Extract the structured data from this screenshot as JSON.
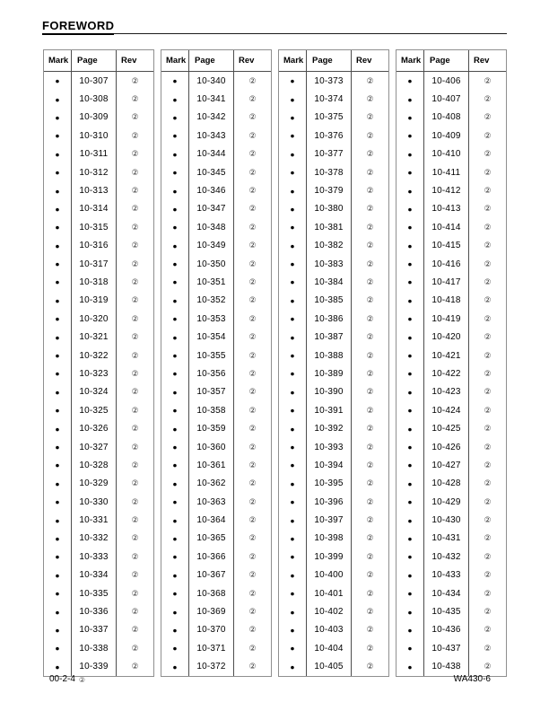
{
  "page": {
    "heading": "FOREWORD",
    "footer": {
      "left_text": "00-2-4",
      "left_rev": "②",
      "right_text": "WA430-6"
    }
  },
  "tables": [
    {
      "headers": [
        "Mark",
        "Page",
        "Rev"
      ],
      "rows": [
        [
          "●",
          "10-307",
          "②"
        ],
        [
          "●",
          "10-308",
          "②"
        ],
        [
          "●",
          "10-309",
          "②"
        ],
        [
          "●",
          "10-310",
          "②"
        ],
        [
          "●",
          "10-311",
          "②"
        ],
        [
          "●",
          "10-312",
          "②"
        ],
        [
          "●",
          "10-313",
          "②"
        ],
        [
          "●",
          "10-314",
          "②"
        ],
        [
          "●",
          "10-315",
          "②"
        ],
        [
          "●",
          "10-316",
          "②"
        ],
        [
          "●",
          "10-317",
          "②"
        ],
        [
          "●",
          "10-318",
          "②"
        ],
        [
          "●",
          "10-319",
          "②"
        ],
        [
          "●",
          "10-320",
          "②"
        ],
        [
          "●",
          "10-321",
          "②"
        ],
        [
          "●",
          "10-322",
          "②"
        ],
        [
          "●",
          "10-323",
          "②"
        ],
        [
          "●",
          "10-324",
          "②"
        ],
        [
          "●",
          "10-325",
          "②"
        ],
        [
          "●",
          "10-326",
          "②"
        ],
        [
          "●",
          "10-327",
          "②"
        ],
        [
          "●",
          "10-328",
          "②"
        ],
        [
          "●",
          "10-329",
          "②"
        ],
        [
          "●",
          "10-330",
          "②"
        ],
        [
          "●",
          "10-331",
          "②"
        ],
        [
          "●",
          "10-332",
          "②"
        ],
        [
          "●",
          "10-333",
          "②"
        ],
        [
          "●",
          "10-334",
          "②"
        ],
        [
          "●",
          "10-335",
          "②"
        ],
        [
          "●",
          "10-336",
          "②"
        ],
        [
          "●",
          "10-337",
          "②"
        ],
        [
          "●",
          "10-338",
          "②"
        ],
        [
          "●",
          "10-339",
          "②"
        ]
      ]
    },
    {
      "headers": [
        "Mark",
        "Page",
        "Rev"
      ],
      "rows": [
        [
          "●",
          "10-340",
          "②"
        ],
        [
          "●",
          "10-341",
          "②"
        ],
        [
          "●",
          "10-342",
          "②"
        ],
        [
          "●",
          "10-343",
          "②"
        ],
        [
          "●",
          "10-344",
          "②"
        ],
        [
          "●",
          "10-345",
          "②"
        ],
        [
          "●",
          "10-346",
          "②"
        ],
        [
          "●",
          "10-347",
          "②"
        ],
        [
          "●",
          "10-348",
          "②"
        ],
        [
          "●",
          "10-349",
          "②"
        ],
        [
          "●",
          "10-350",
          "②"
        ],
        [
          "●",
          "10-351",
          "②"
        ],
        [
          "●",
          "10-352",
          "②"
        ],
        [
          "●",
          "10-353",
          "②"
        ],
        [
          "●",
          "10-354",
          "②"
        ],
        [
          "●",
          "10-355",
          "②"
        ],
        [
          "●",
          "10-356",
          "②"
        ],
        [
          "●",
          "10-357",
          "②"
        ],
        [
          "●",
          "10-358",
          "②"
        ],
        [
          "●",
          "10-359",
          "②"
        ],
        [
          "●",
          "10-360",
          "②"
        ],
        [
          "●",
          "10-361",
          "②"
        ],
        [
          "●",
          "10-362",
          "②"
        ],
        [
          "●",
          "10-363",
          "②"
        ],
        [
          "●",
          "10-364",
          "②"
        ],
        [
          "●",
          "10-365",
          "②"
        ],
        [
          "●",
          "10-366",
          "②"
        ],
        [
          "●",
          "10-367",
          "②"
        ],
        [
          "●",
          "10-368",
          "②"
        ],
        [
          "●",
          "10-369",
          "②"
        ],
        [
          "●",
          "10-370",
          "②"
        ],
        [
          "●",
          "10-371",
          "②"
        ],
        [
          "●",
          "10-372",
          "②"
        ]
      ]
    },
    {
      "headers": [
        "Mark",
        "Page",
        "Rev"
      ],
      "rows": [
        [
          "●",
          "10-373",
          "②"
        ],
        [
          "●",
          "10-374",
          "②"
        ],
        [
          "●",
          "10-375",
          "②"
        ],
        [
          "●",
          "10-376",
          "②"
        ],
        [
          "●",
          "10-377",
          "②"
        ],
        [
          "●",
          "10-378",
          "②"
        ],
        [
          "●",
          "10-379",
          "②"
        ],
        [
          "●",
          "10-380",
          "②"
        ],
        [
          "●",
          "10-381",
          "②"
        ],
        [
          "●",
          "10-382",
          "②"
        ],
        [
          "●",
          "10-383",
          "②"
        ],
        [
          "●",
          "10-384",
          "②"
        ],
        [
          "●",
          "10-385",
          "②"
        ],
        [
          "●",
          "10-386",
          "②"
        ],
        [
          "●",
          "10-387",
          "②"
        ],
        [
          "●",
          "10-388",
          "②"
        ],
        [
          "●",
          "10-389",
          "②"
        ],
        [
          "●",
          "10-390",
          "②"
        ],
        [
          "●",
          "10-391",
          "②"
        ],
        [
          "●",
          "10-392",
          "②"
        ],
        [
          "●",
          "10-393",
          "②"
        ],
        [
          "●",
          "10-394",
          "②"
        ],
        [
          "●",
          "10-395",
          "②"
        ],
        [
          "●",
          "10-396",
          "②"
        ],
        [
          "●",
          "10-397",
          "②"
        ],
        [
          "●",
          "10-398",
          "②"
        ],
        [
          "●",
          "10-399",
          "②"
        ],
        [
          "●",
          "10-400",
          "②"
        ],
        [
          "●",
          "10-401",
          "②"
        ],
        [
          "●",
          "10-402",
          "②"
        ],
        [
          "●",
          "10-403",
          "②"
        ],
        [
          "●",
          "10-404",
          "②"
        ],
        [
          "●",
          "10-405",
          "②"
        ]
      ]
    },
    {
      "headers": [
        "Mark",
        "Page",
        "Rev"
      ],
      "rows": [
        [
          "●",
          "10-406",
          "②"
        ],
        [
          "●",
          "10-407",
          "②"
        ],
        [
          "●",
          "10-408",
          "②"
        ],
        [
          "●",
          "10-409",
          "②"
        ],
        [
          "●",
          "10-410",
          "②"
        ],
        [
          "●",
          "10-411",
          "②"
        ],
        [
          "●",
          "10-412",
          "②"
        ],
        [
          "●",
          "10-413",
          "②"
        ],
        [
          "●",
          "10-414",
          "②"
        ],
        [
          "●",
          "10-415",
          "②"
        ],
        [
          "●",
          "10-416",
          "②"
        ],
        [
          "●",
          "10-417",
          "②"
        ],
        [
          "●",
          "10-418",
          "②"
        ],
        [
          "●",
          "10-419",
          "②"
        ],
        [
          "●",
          "10-420",
          "②"
        ],
        [
          "●",
          "10-421",
          "②"
        ],
        [
          "●",
          "10-422",
          "②"
        ],
        [
          "●",
          "10-423",
          "②"
        ],
        [
          "●",
          "10-424",
          "②"
        ],
        [
          "●",
          "10-425",
          "②"
        ],
        [
          "●",
          "10-426",
          "②"
        ],
        [
          "●",
          "10-427",
          "②"
        ],
        [
          "●",
          "10-428",
          "②"
        ],
        [
          "●",
          "10-429",
          "②"
        ],
        [
          "●",
          "10-430",
          "②"
        ],
        [
          "●",
          "10-431",
          "②"
        ],
        [
          "●",
          "10-432",
          "②"
        ],
        [
          "●",
          "10-433",
          "②"
        ],
        [
          "●",
          "10-434",
          "②"
        ],
        [
          "●",
          "10-435",
          "②"
        ],
        [
          "●",
          "10-436",
          "②"
        ],
        [
          "●",
          "10-437",
          "②"
        ],
        [
          "●",
          "10-438",
          "②"
        ]
      ]
    }
  ]
}
